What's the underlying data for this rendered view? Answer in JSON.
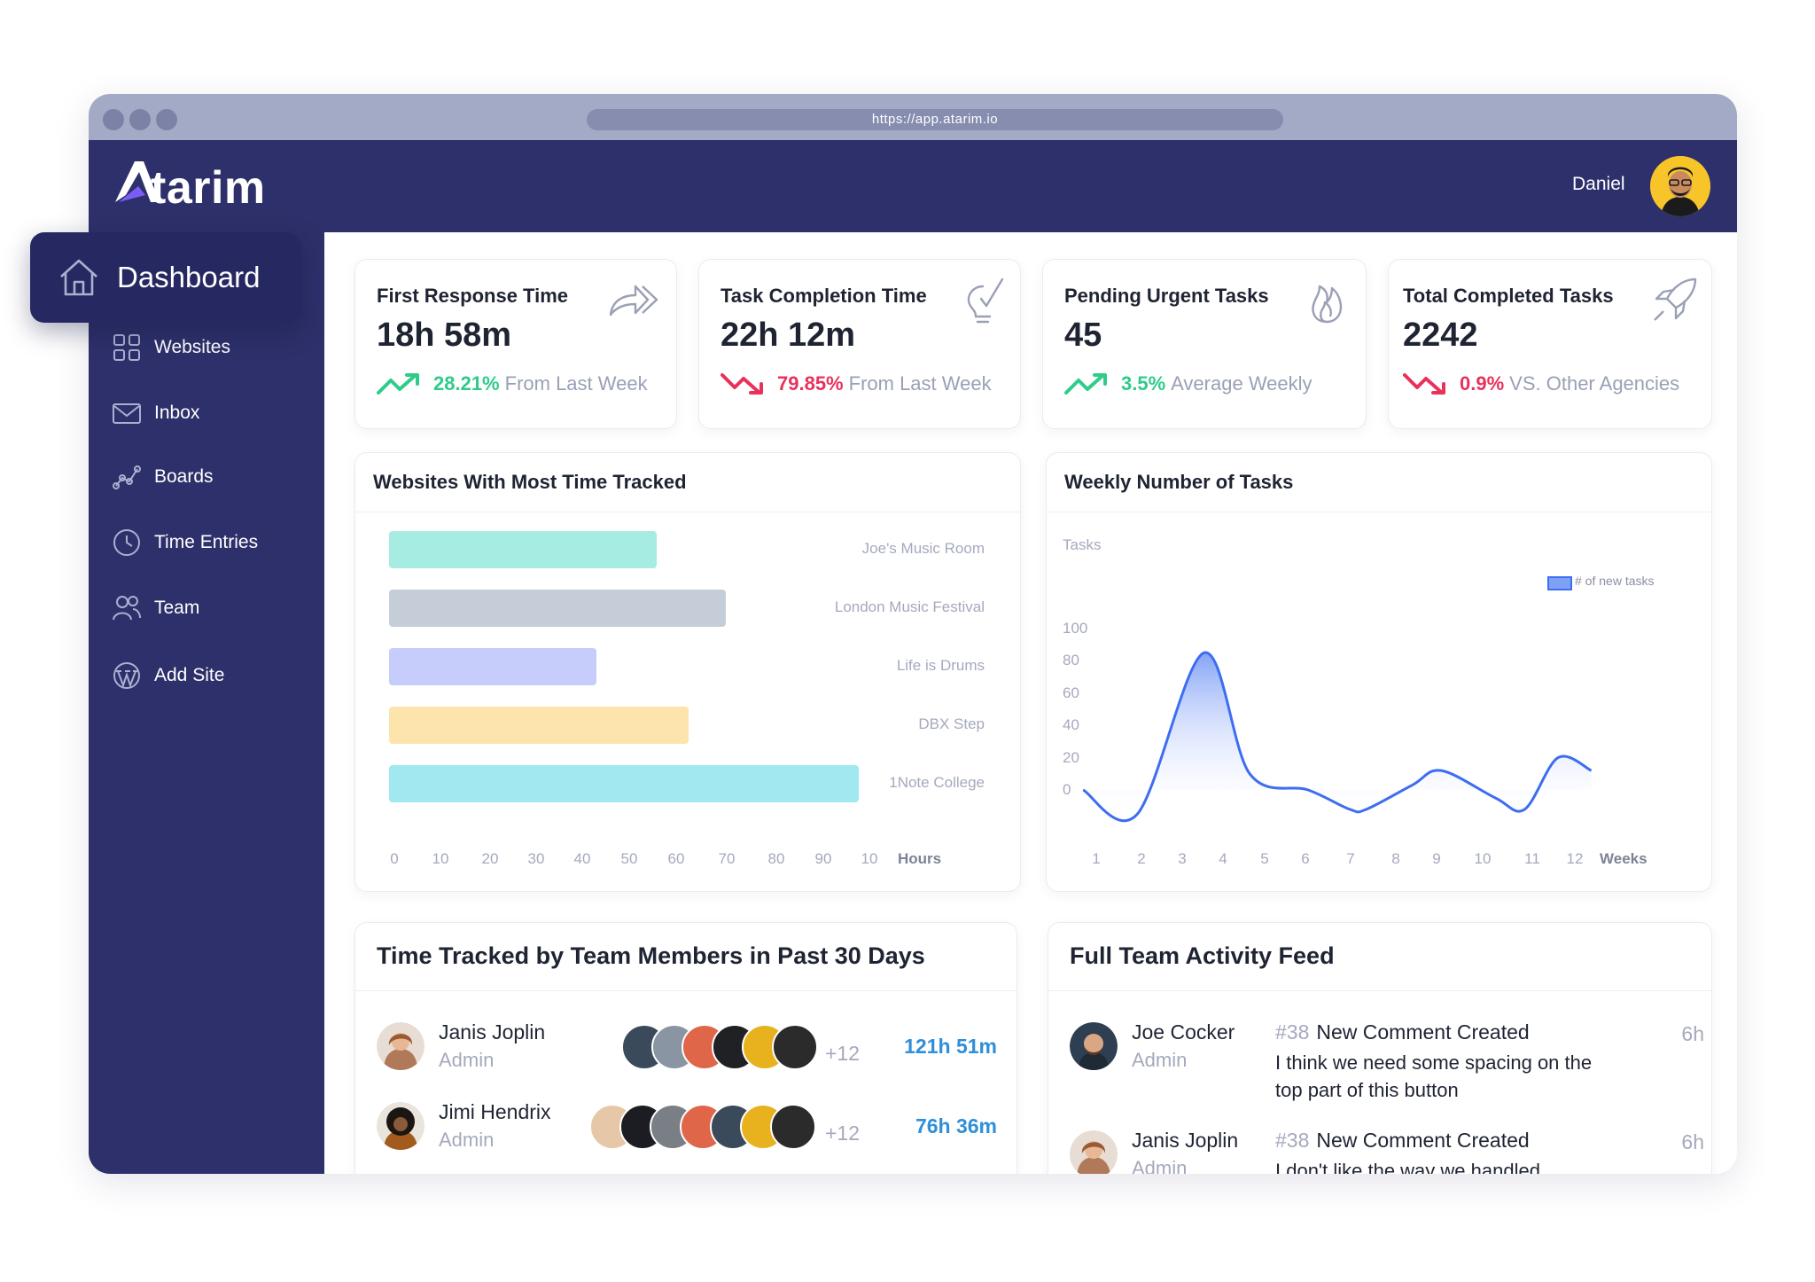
{
  "browser": {
    "url": "https://app.atarim.io"
  },
  "app": {
    "logo_text": "tarim",
    "user_name": "Daniel"
  },
  "sidebar": {
    "active": "Dashboard",
    "items": [
      {
        "label": "Websites",
        "icon": "grid-icon"
      },
      {
        "label": "Inbox",
        "icon": "mail-icon"
      },
      {
        "label": "Boards",
        "icon": "boards-icon"
      },
      {
        "label": "Time Entries",
        "icon": "clock-icon"
      },
      {
        "label": "Team",
        "icon": "team-icon"
      },
      {
        "label": "Add Site",
        "icon": "wordpress-icon"
      }
    ]
  },
  "stats": [
    {
      "title": "First Response Time",
      "value": "18h 58m",
      "percent": "28.21%",
      "suffix": "From Last Week",
      "direction": "up",
      "icon": "forward-arrows-icon"
    },
    {
      "title": "Task Completion Time",
      "value": "22h 12m",
      "percent": "79.85%",
      "suffix": "From Last Week",
      "direction": "down",
      "icon": "lightbulb-check-icon"
    },
    {
      "title": "Pending Urgent Tasks",
      "value": "45",
      "percent": "3.5%",
      "suffix": "Average Weekly",
      "direction": "up",
      "icon": "fire-icon"
    },
    {
      "title": "Total Completed Tasks",
      "value": "2242",
      "percent": "0.9%",
      "suffix": "VS. Other Agencies",
      "direction": "down",
      "icon": "rocket-icon"
    }
  ],
  "colors": {
    "up": "#2ecc8a",
    "down": "#e8315b",
    "sidebar": "#2d306a",
    "accent": "#2f8fd8",
    "line": "#3d6df0"
  },
  "websites_card": {
    "title": "Websites With Most Time Tracked"
  },
  "weekly_card": {
    "title": "Weekly Number of Tasks"
  },
  "chart_data": [
    {
      "type": "bar",
      "orientation": "horizontal",
      "categories": [
        "Joe's Music Room",
        "London Music Festival",
        "Life is Drums",
        "DBX Step",
        "1Note College"
      ],
      "values": [
        58,
        73,
        45,
        65,
        102
      ],
      "colors": [
        "#a7ece2",
        "#c5ced8",
        "#c6cdfa",
        "#fde4ad",
        "#a2e8f1"
      ],
      "x_ticks": [
        "0",
        "10",
        "20",
        "30",
        "40",
        "50",
        "60",
        "70",
        "80",
        "90",
        "10"
      ],
      "xlabel": "Hours",
      "xlim": [
        0,
        100
      ]
    },
    {
      "type": "area",
      "title": "",
      "ylabel": "Tasks",
      "xlabel": "Weeks",
      "legend": "# of new tasks",
      "legend_position": "top-right",
      "x": [
        0.6,
        1.9,
        3.5,
        4.6,
        6,
        7,
        7.4,
        8.5,
        9.2,
        10.5,
        11.2,
        12,
        12.8
      ],
      "y": [
        0,
        -15,
        85,
        10,
        0,
        -12,
        -12,
        3,
        12,
        -5,
        -12,
        20,
        12
      ],
      "x_ticks": [
        "1",
        "2",
        "3",
        "4",
        "5",
        "6",
        "7",
        "8",
        "9",
        "10",
        "11",
        "12"
      ],
      "y_ticks": [
        "100",
        "80",
        "60",
        "40",
        "20",
        "0"
      ],
      "ylim": [
        0,
        100
      ]
    }
  ],
  "team_card": {
    "title": "Time Tracked by Team Members in Past 30 Days",
    "members": [
      {
        "name": "Janis Joplin",
        "role": "Admin",
        "more": "+12",
        "time": "121h 51m"
      },
      {
        "name": "Jimi Hendrix",
        "role": "Admin",
        "more": "+12",
        "time": "76h 36m"
      }
    ]
  },
  "feed_card": {
    "title": "Full Team Activity Feed",
    "items": [
      {
        "name": "Joe Cocker",
        "role": "Admin",
        "num": "#38",
        "event": "New Comment Created",
        "text": "I think we need some spacing on the top part of this button",
        "time": "6h"
      },
      {
        "name": "Janis Joplin",
        "role": "Admin",
        "num": "#38",
        "event": "New Comment Created",
        "text": "I don't like the way we handled",
        "time": "6h"
      }
    ]
  }
}
